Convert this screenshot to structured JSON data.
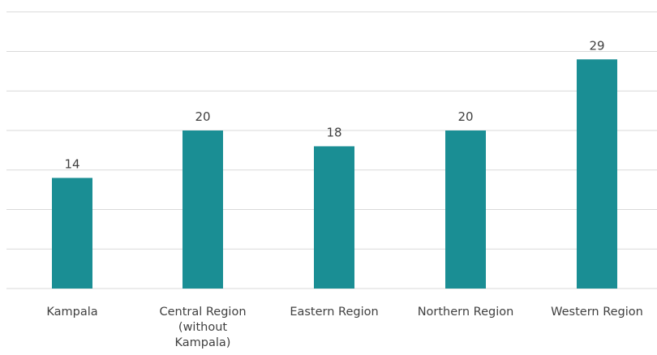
{
  "chart_data": {
    "type": "bar",
    "categories": [
      [
        "Kampala"
      ],
      [
        "Central Region",
        "(without",
        "Kampala)"
      ],
      [
        "Eastern Region"
      ],
      [
        "Northern Region"
      ],
      [
        "Western Region"
      ]
    ],
    "values": [
      14,
      20,
      18,
      20,
      29
    ],
    "title": "",
    "xlabel": "",
    "ylabel": "",
    "ylim": [
      0,
      35
    ],
    "grid": true,
    "bar_color": "#1a8e94"
  }
}
